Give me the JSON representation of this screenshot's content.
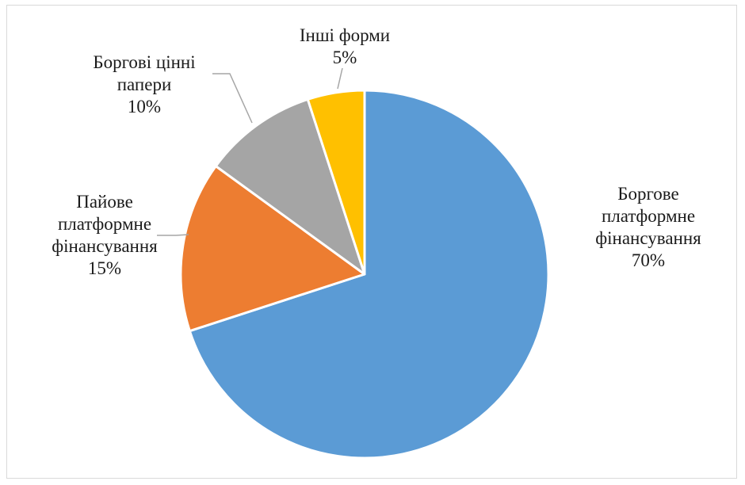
{
  "chart_data": {
    "type": "pie",
    "title": "",
    "slices": [
      {
        "label_lines": [
          "Боргове",
          "платформне",
          "фінансування"
        ],
        "value": 70,
        "value_label": "70%",
        "color": "#5b9bd5"
      },
      {
        "label_lines": [
          "Пайове",
          "платформне",
          "фінансування"
        ],
        "value": 15,
        "value_label": "15%",
        "color": "#ed7d31"
      },
      {
        "label_lines": [
          "Боргові цінні",
          "папери"
        ],
        "value": 10,
        "value_label": "10%",
        "color": "#a5a5a5"
      },
      {
        "label_lines": [
          "Інші форми"
        ],
        "value": 5,
        "value_label": "5%",
        "color": "#ffc000"
      }
    ],
    "start_angle": "12 o'clock",
    "direction": "clockwise",
    "leader_line_color": "#a6a6a6"
  }
}
